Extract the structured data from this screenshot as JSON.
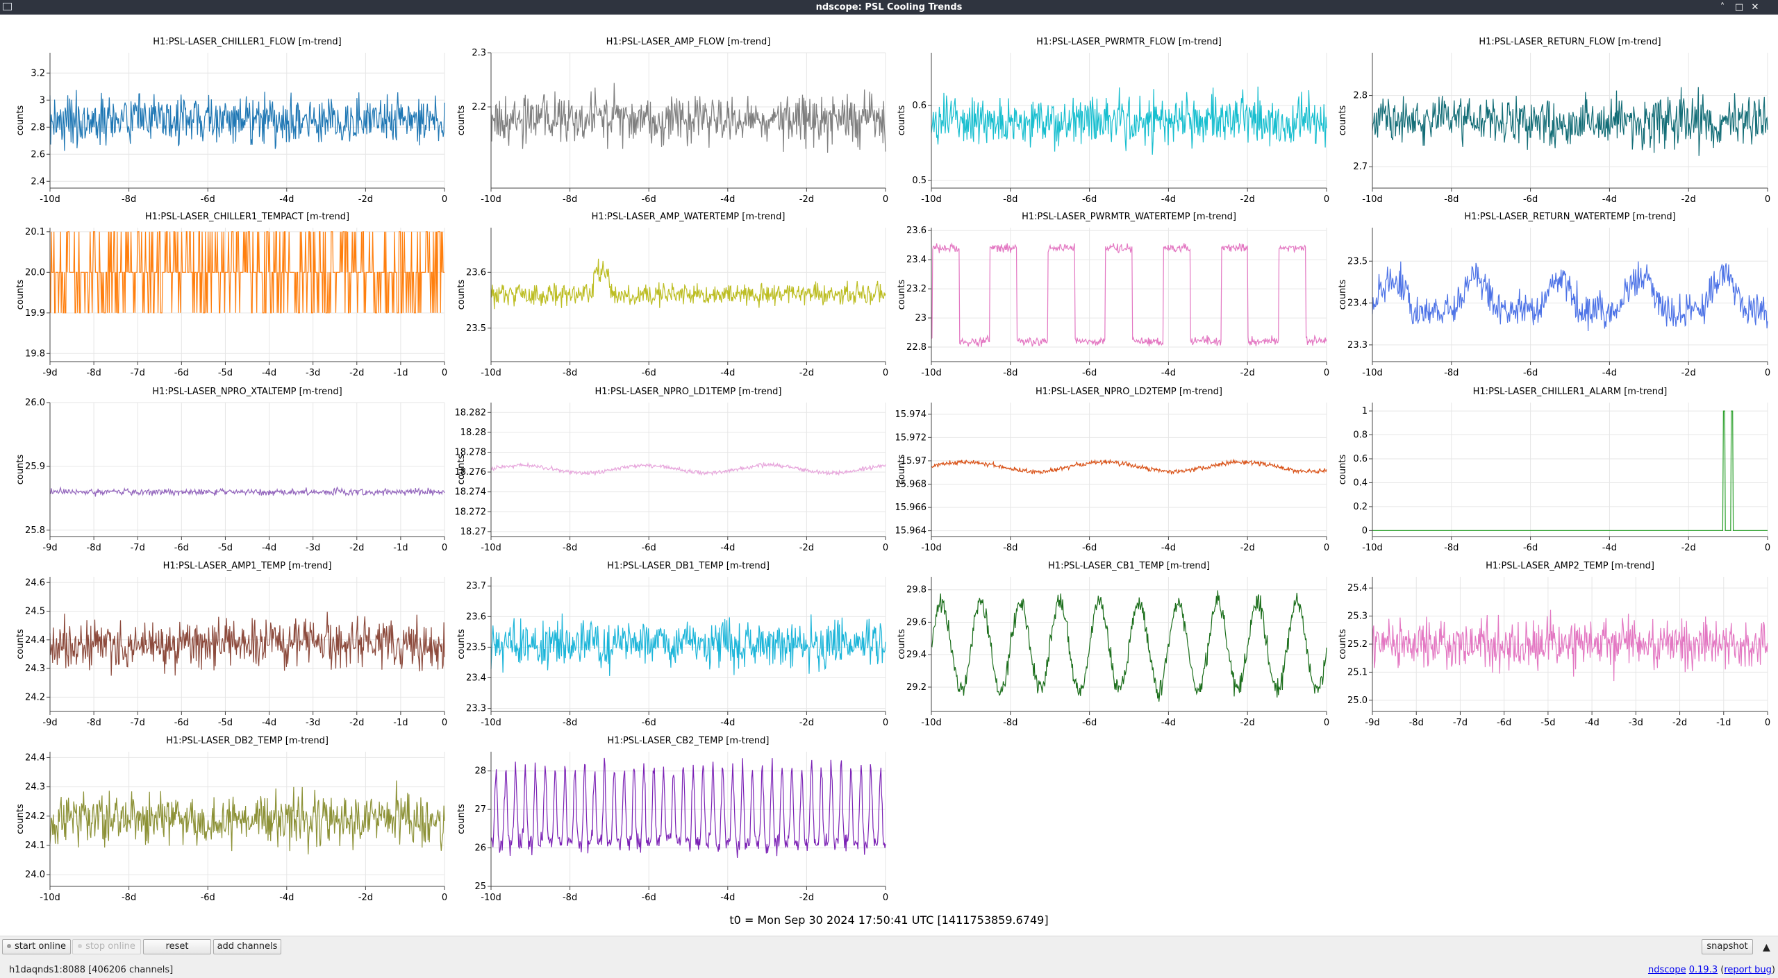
{
  "window": {
    "title": "ndscope: PSL Cooling Trends",
    "buttons": {
      "minimize": "˄",
      "maximize": "□",
      "close": "✕"
    }
  },
  "t0_label": "t0 = Mon Sep 30 2024 17:50:41 UTC [1411753859.6749]",
  "toolbar": {
    "start_online": "start online",
    "stop_online": "stop online",
    "reset": "reset",
    "add_channels": "add channels",
    "snapshot": "snapshot"
  },
  "status": {
    "server": "h1daqnds1:8088  [406206 channels]",
    "app_name": "ndscope",
    "version": "0.19.3",
    "report_bug": "report bug"
  },
  "plots": [
    {
      "id": "chiller1-flow",
      "title": "H1:PSL-LASER_CHILLER1_FLOW [m-trend]",
      "ylabel": "counts",
      "color": "#1f77b4",
      "yticks": [
        "2.4",
        "2.6",
        "2.8",
        "3",
        "3.2"
      ],
      "ylim": [
        2.35,
        3.35
      ],
      "xticks": [
        "-10d",
        "-8d",
        "-6d",
        "-4d",
        "-2d",
        "0"
      ]
    },
    {
      "id": "amp-flow",
      "title": "H1:PSL-LASER_AMP_FLOW [m-trend]",
      "ylabel": "counts",
      "color": "#7f7f7f",
      "yticks": [
        "2.2",
        "2.3"
      ],
      "ylim": [
        2.05,
        2.3
      ],
      "xticks": [
        "-10d",
        "-8d",
        "-6d",
        "-4d",
        "-2d",
        "0"
      ]
    },
    {
      "id": "pwrmtr-flow",
      "title": "H1:PSL-LASER_PWRMTR_FLOW [m-trend]",
      "ylabel": "counts",
      "color": "#17becf",
      "yticks": [
        "0.5",
        "0.6"
      ],
      "ylim": [
        0.49,
        0.67
      ],
      "xticks": [
        "-10d",
        "-8d",
        "-6d",
        "-4d",
        "-2d",
        "0"
      ]
    },
    {
      "id": "return-flow",
      "title": "H1:PSL-LASER_RETURN_FLOW [m-trend]",
      "ylabel": "counts",
      "color": "#136d77",
      "yticks": [
        "2.7",
        "2.8"
      ],
      "ylim": [
        2.67,
        2.86
      ],
      "xticks": [
        "-10d",
        "-8d",
        "-6d",
        "-4d",
        "-2d",
        "0"
      ]
    },
    {
      "id": "chiller1-tempact",
      "title": "H1:PSL-LASER_CHILLER1_TEMPACT [m-trend]",
      "ylabel": "counts",
      "color": "#ff7f0e",
      "yticks": [
        "19.8",
        "19.9",
        "20.0",
        "20.1"
      ],
      "ylim": [
        19.78,
        20.11
      ],
      "xticks": [
        "-9d",
        "-8d",
        "-7d",
        "-6d",
        "-5d",
        "-4d",
        "-3d",
        "-2d",
        "-1d",
        "0"
      ]
    },
    {
      "id": "amp-watertemp",
      "title": "H1:PSL-LASER_AMP_WATERTEMP [m-trend]",
      "ylabel": "counts",
      "color": "#bcbd22",
      "yticks": [
        "23.5",
        "23.6"
      ],
      "ylim": [
        23.44,
        23.68
      ],
      "xticks": [
        "-10d",
        "-8d",
        "-6d",
        "-4d",
        "-2d",
        "0"
      ]
    },
    {
      "id": "pwrmtr-watertemp",
      "title": "H1:PSL-LASER_PWRMTR_WATERTEMP [m-trend]",
      "ylabel": "counts",
      "color": "#e377c2",
      "yticks": [
        "22.8",
        "23",
        "23.2",
        "23.4",
        "23.6"
      ],
      "ylim": [
        22.7,
        23.62
      ],
      "xticks": [
        "-10d",
        "-8d",
        "-6d",
        "-4d",
        "-2d",
        "0"
      ]
    },
    {
      "id": "return-watertemp",
      "title": "H1:PSL-LASER_RETURN_WATERTEMP [m-trend]",
      "ylabel": "counts",
      "color": "#4c72e6",
      "yticks": [
        "23.3",
        "23.4",
        "23.5"
      ],
      "ylim": [
        23.26,
        23.58
      ],
      "xticks": [
        "-10d",
        "-8d",
        "-6d",
        "-4d",
        "-2d",
        "0"
      ]
    },
    {
      "id": "npro-xtaltemp",
      "title": "H1:PSL-LASER_NPRO_XTALTEMP [m-trend]",
      "ylabel": "counts",
      "color": "#9467bd",
      "yticks": [
        "25.8",
        "25.9",
        "26.0"
      ],
      "ylim": [
        25.79,
        26.0
      ],
      "xticks": [
        "-9d",
        "-8d",
        "-7d",
        "-6d",
        "-5d",
        "-4d",
        "-3d",
        "-2d",
        "-1d",
        "0"
      ]
    },
    {
      "id": "npro-ld1temp",
      "title": "H1:PSL-LASER_NPRO_LD1TEMP [m-trend]",
      "ylabel": "counts",
      "color": "#e7a6dc",
      "yticks": [
        "18.27",
        "18.272",
        "18.274",
        "18.276",
        "18.278",
        "18.28",
        "18.282"
      ],
      "ylim": [
        18.2695,
        18.283
      ],
      "xticks": [
        "-10d",
        "-8d",
        "-6d",
        "-4d",
        "-2d",
        "0"
      ]
    },
    {
      "id": "npro-ld2temp",
      "title": "H1:PSL-LASER_NPRO_LD2TEMP [m-trend]",
      "ylabel": "counts",
      "color": "#d95319",
      "yticks": [
        "15.964",
        "15.966",
        "15.968",
        "15.97",
        "15.972",
        "15.974"
      ],
      "ylim": [
        15.9635,
        15.975
      ],
      "xticks": [
        "-10d",
        "-8d",
        "-6d",
        "-4d",
        "-2d",
        "0"
      ]
    },
    {
      "id": "chiller1-alarm",
      "title": "H1:PSL-LASER_CHILLER1_ALARM [m-trend]",
      "ylabel": "counts",
      "color": "#2ca02c",
      "yticks": [
        "0",
        "0.2",
        "0.4",
        "0.6",
        "0.8",
        "1"
      ],
      "ylim": [
        -0.05,
        1.07
      ],
      "xticks": [
        "-10d",
        "-8d",
        "-6d",
        "-4d",
        "-2d",
        "0"
      ]
    },
    {
      "id": "amp1-temp",
      "title": "H1:PSL-LASER_AMP1_TEMP [m-trend]",
      "ylabel": "counts",
      "color": "#8c4a3c",
      "yticks": [
        "24.2",
        "24.3",
        "24.4",
        "24.5",
        "24.6"
      ],
      "ylim": [
        24.15,
        24.62
      ],
      "xticks": [
        "-9d",
        "-8d",
        "-7d",
        "-6d",
        "-5d",
        "-4d",
        "-3d",
        "-2d",
        "-1d",
        "0"
      ]
    },
    {
      "id": "db1-temp",
      "title": "H1:PSL-LASER_DB1_TEMP [m-trend]",
      "ylabel": "counts",
      "color": "#1cb5d9",
      "yticks": [
        "23.3",
        "23.4",
        "23.5",
        "23.6",
        "23.7"
      ],
      "ylim": [
        23.29,
        23.73
      ],
      "xticks": [
        "-10d",
        "-8d",
        "-6d",
        "-4d",
        "-2d",
        "0"
      ]
    },
    {
      "id": "cb1-temp",
      "title": "H1:PSL-LASER_CB1_TEMP [m-trend]",
      "ylabel": "counts",
      "color": "#1b6e1b",
      "yticks": [
        "29.2",
        "29.4",
        "29.6",
        "29.8"
      ],
      "ylim": [
        29.05,
        29.88
      ],
      "xticks": [
        "-10d",
        "-8d",
        "-6d",
        "-4d",
        "-2d",
        "0"
      ]
    },
    {
      "id": "amp2-temp",
      "title": "H1:PSL-LASER_AMP2_TEMP [m-trend]",
      "ylabel": "counts",
      "color": "#e377c2",
      "yticks": [
        "25.0",
        "25.1",
        "25.2",
        "25.3",
        "25.4"
      ],
      "ylim": [
        24.96,
        25.44
      ],
      "xticks": [
        "-9d",
        "-8d",
        "-7d",
        "-6d",
        "-5d",
        "-4d",
        "-3d",
        "-2d",
        "-1d",
        "0"
      ]
    },
    {
      "id": "db2-temp",
      "title": "H1:PSL-LASER_DB2_TEMP [m-trend]",
      "ylabel": "counts",
      "color": "#8c9136",
      "yticks": [
        "24.0",
        "24.1",
        "24.2",
        "24.3",
        "24.4"
      ],
      "ylim": [
        23.96,
        24.42
      ],
      "xticks": [
        "-10d",
        "-8d",
        "-6d",
        "-4d",
        "-2d",
        "0"
      ]
    },
    {
      "id": "cb2-temp",
      "title": "H1:PSL-LASER_CB2_TEMP [m-trend]",
      "ylabel": "counts",
      "color": "#7b22b5",
      "yticks": [
        "25",
        "26",
        "27",
        "28"
      ],
      "ylim": [
        25.0,
        28.5
      ],
      "xticks": [
        "-10d",
        "-8d",
        "-6d",
        "-4d",
        "-2d",
        "0"
      ]
    }
  ]
}
